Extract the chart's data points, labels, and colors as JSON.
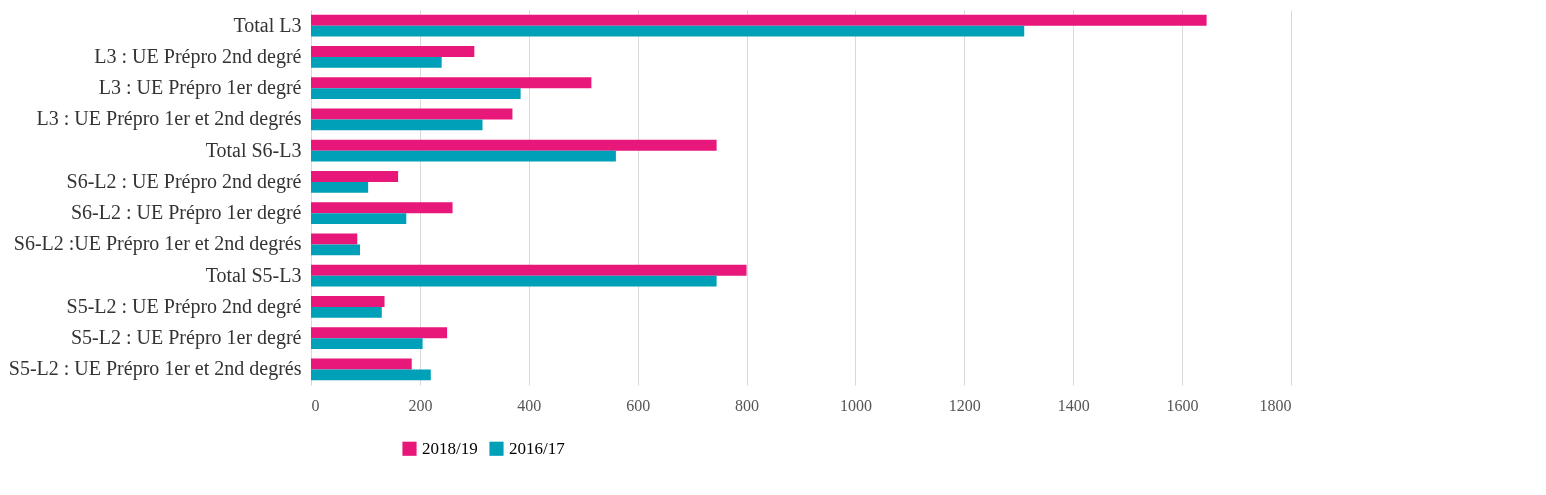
{
  "chart_data": {
    "type": "bar",
    "orientation": "horizontal",
    "categories": [
      "Total L3",
      "L3 : UE Prépro 2nd  degré",
      "L3 : UE Prépro 1er  degré",
      "L3 : UE Prépro 1er et 2nd degrés",
      "Total S6-L3",
      "S6-L2 : UE Prépro 2nd  degré",
      "S6-L2 :  UE Prépro 1er  degré",
      "S6-L2 :UE Prépro 1er et 2nd degrés",
      "Total S5-L3",
      "S5-L2 : UE Prépro 2nd  degré",
      "S5-L2 : UE Prépro 1er  degré",
      "S5-L2 : UE Prépro 1er et 2nd degrés"
    ],
    "series": [
      {
        "name": "2018/19",
        "color": "#e8177a",
        "values": [
          1645,
          300,
          515,
          370,
          745,
          160,
          260,
          85,
          800,
          135,
          250,
          185
        ]
      },
      {
        "name": "2016/17",
        "color": "#00a0b8",
        "values": [
          1310,
          240,
          385,
          315,
          560,
          105,
          175,
          90,
          745,
          130,
          205,
          220
        ]
      }
    ],
    "xlim": [
      0,
      1800
    ],
    "xticks": [
      0,
      200,
      400,
      600,
      800,
      1000,
      1200,
      1400,
      1600,
      1800
    ],
    "grid": "x",
    "legend": "bottom"
  }
}
